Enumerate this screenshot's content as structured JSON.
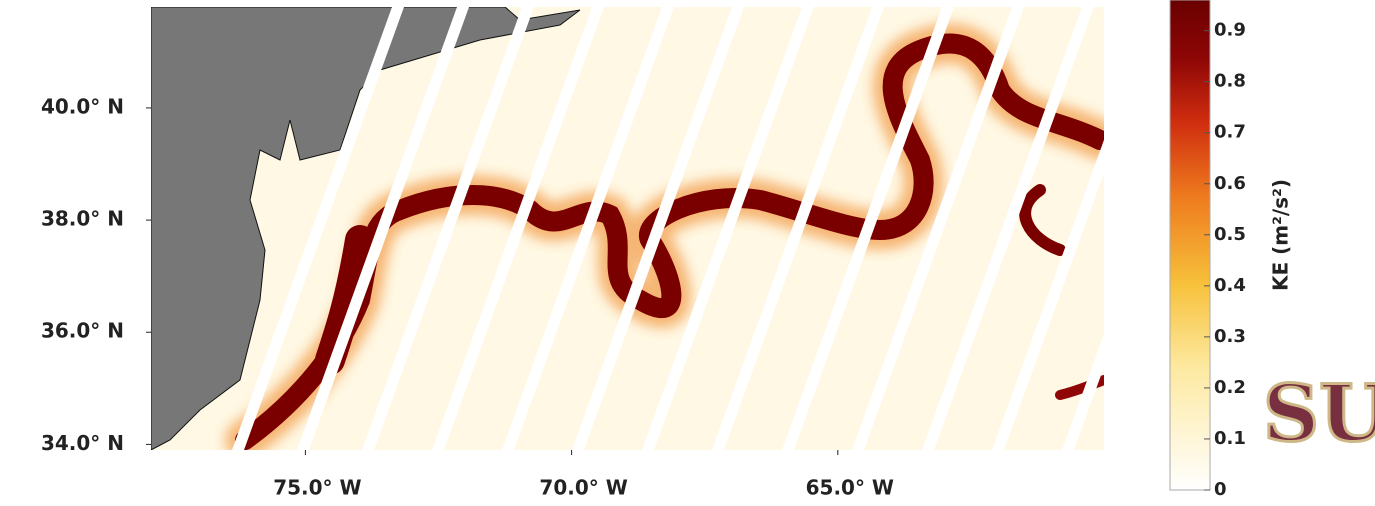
{
  "map": {
    "lonlim": [
      -77.9,
      -60
    ],
    "latlim": [
      33.9,
      41.8
    ],
    "lat_ticks": [
      {
        "value": 40,
        "label": "40.0° N"
      },
      {
        "value": 38,
        "label": "38.0° N"
      },
      {
        "value": 36,
        "label": "36.0° N"
      },
      {
        "value": 34,
        "label": "34.0° N"
      }
    ],
    "lon_ticks": [
      {
        "value": -75,
        "label": "75.0° W"
      },
      {
        "value": -70,
        "label": "70.0° W"
      },
      {
        "value": -65,
        "label": "65.0° W"
      }
    ],
    "colorbar": {
      "label": "KE (m²/s²)",
      "lim": [
        0,
        0.96
      ],
      "ticks": [
        0,
        0.1,
        0.2,
        0.3,
        0.4,
        0.5,
        0.6,
        0.7,
        0.8,
        0.9
      ]
    },
    "logo": "SU"
  }
}
